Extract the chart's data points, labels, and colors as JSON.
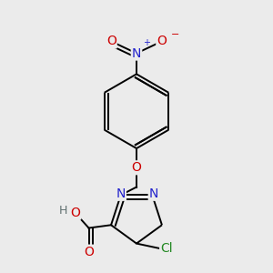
{
  "bg_color": "#ebebeb",
  "bond_color": "#000000",
  "atom_colors": {
    "N": "#2222cc",
    "O": "#cc0000",
    "Cl": "#228822",
    "C": "#000000",
    "H": "#607070"
  },
  "lw": 1.4,
  "dbo": 0.012,
  "fs": 10
}
